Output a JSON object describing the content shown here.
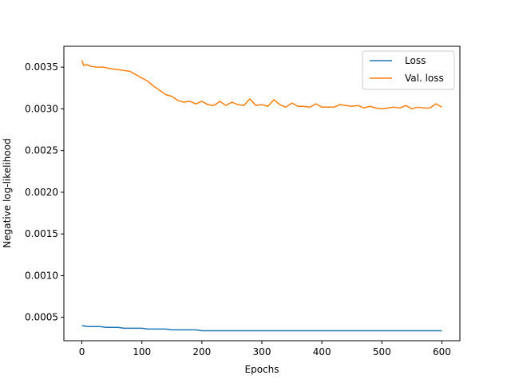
{
  "chart_data": {
    "type": "line",
    "title": "",
    "xlabel": "Epochs",
    "ylabel": "Negative log-likelihood",
    "xlim": [
      -30,
      630
    ],
    "ylim": [
      0.00022,
      0.00375
    ],
    "xticks": [
      0,
      100,
      200,
      300,
      400,
      500,
      600
    ],
    "yticks": [
      0.0005,
      0.001,
      0.0015,
      0.002,
      0.0025,
      0.003,
      0.0035
    ],
    "xtick_labels": [
      "0",
      "100",
      "200",
      "300",
      "400",
      "500",
      "600"
    ],
    "ytick_labels": [
      "0.0005",
      "0.0010",
      "0.0015",
      "0.0020",
      "0.0025",
      "0.0030",
      "0.0035"
    ],
    "grid": false,
    "legend_position": "top-right",
    "series": [
      {
        "name": "Loss",
        "color": "#1f77b4",
        "x": [
          0,
          10,
          20,
          30,
          40,
          50,
          60,
          70,
          80,
          90,
          100,
          110,
          120,
          130,
          140,
          150,
          160,
          170,
          180,
          190,
          200,
          210,
          220,
          230,
          240,
          250,
          260,
          270,
          280,
          290,
          300,
          310,
          320,
          330,
          340,
          350,
          360,
          370,
          380,
          390,
          400,
          410,
          420,
          430,
          440,
          450,
          460,
          470,
          480,
          490,
          500,
          510,
          520,
          530,
          540,
          550,
          560,
          570,
          580,
          590,
          600
        ],
        "values": [
          0.0004,
          0.00039,
          0.00039,
          0.00039,
          0.00038,
          0.00038,
          0.00038,
          0.00037,
          0.00037,
          0.00037,
          0.00037,
          0.00036,
          0.00036,
          0.00036,
          0.00036,
          0.00035,
          0.00035,
          0.00035,
          0.00035,
          0.00035,
          0.00034,
          0.00034,
          0.00034,
          0.00034,
          0.00034,
          0.00034,
          0.00034,
          0.00034,
          0.00034,
          0.00034,
          0.00034,
          0.00034,
          0.00034,
          0.00034,
          0.00034,
          0.00034,
          0.00034,
          0.00034,
          0.00034,
          0.00034,
          0.00034,
          0.00034,
          0.00034,
          0.00034,
          0.00034,
          0.00034,
          0.00034,
          0.00034,
          0.00034,
          0.00034,
          0.00034,
          0.00034,
          0.00034,
          0.00034,
          0.00034,
          0.00034,
          0.00034,
          0.00034,
          0.00034,
          0.00034,
          0.00034
        ]
      },
      {
        "name": "Val. loss",
        "color": "#ff7f0e",
        "x": [
          0,
          3,
          8,
          15,
          25,
          35,
          50,
          60,
          70,
          80,
          90,
          100,
          110,
          120,
          130,
          140,
          150,
          160,
          170,
          180,
          190,
          200,
          210,
          220,
          230,
          240,
          250,
          260,
          270,
          280,
          290,
          300,
          310,
          320,
          330,
          340,
          350,
          360,
          370,
          380,
          390,
          400,
          410,
          420,
          430,
          440,
          450,
          460,
          470,
          480,
          490,
          500,
          510,
          520,
          530,
          540,
          550,
          560,
          570,
          580,
          590,
          600
        ],
        "values": [
          0.00358,
          0.00352,
          0.00353,
          0.00351,
          0.0035,
          0.0035,
          0.00348,
          0.00347,
          0.00346,
          0.00345,
          0.00341,
          0.00337,
          0.00333,
          0.00327,
          0.00322,
          0.00317,
          0.00315,
          0.0031,
          0.00308,
          0.00309,
          0.00306,
          0.00309,
          0.00305,
          0.00304,
          0.00309,
          0.00304,
          0.00308,
          0.00305,
          0.00304,
          0.00312,
          0.00304,
          0.00305,
          0.00303,
          0.00311,
          0.00305,
          0.00302,
          0.00307,
          0.00303,
          0.00303,
          0.00302,
          0.00306,
          0.00302,
          0.00302,
          0.00302,
          0.00305,
          0.00304,
          0.00303,
          0.00304,
          0.00301,
          0.00303,
          0.00301,
          0.003,
          0.00301,
          0.00302,
          0.00301,
          0.00304,
          0.003,
          0.00302,
          0.00301,
          0.00301,
          0.00306,
          0.00302
        ]
      }
    ]
  }
}
